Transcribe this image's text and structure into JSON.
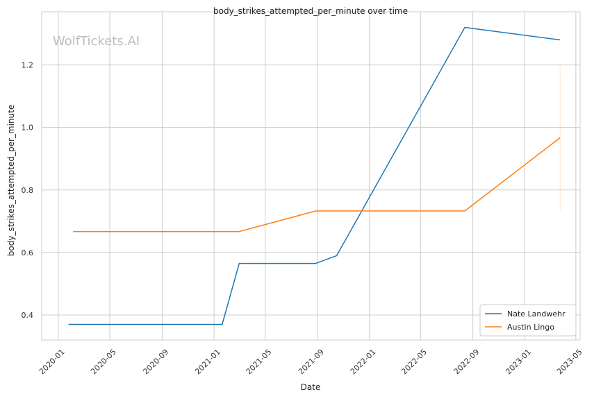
{
  "chart_data": {
    "type": "line",
    "title": "body_strikes_attempted_per_minute over time",
    "xlabel": "Date",
    "ylabel": "body_strikes_attempted_per_minute",
    "watermark": "WolfTickets.AI",
    "grid": true,
    "legend_position": "bottom-right",
    "xlim": [
      "2019-11-23",
      "2023-05-11"
    ],
    "ylim": [
      0.32,
      1.37
    ],
    "x_ticks": [
      "2020-01",
      "2020-05",
      "2020-09",
      "2021-01",
      "2021-05",
      "2021-09",
      "2022-01",
      "2022-05",
      "2022-09",
      "2023-01",
      "2023-05"
    ],
    "y_ticks": [
      0.4,
      0.6,
      0.8,
      1.0,
      1.2
    ],
    "y_tick_labels": [
      "0.4",
      "0.6",
      "0.8",
      "1.0",
      "1.2"
    ],
    "series": [
      {
        "name": "Nate Landwehr",
        "color": "#1f77b4",
        "points": [
          {
            "x": "2020-01-25",
            "y": 0.37
          },
          {
            "x": "2021-01-20",
            "y": 0.37
          },
          {
            "x": "2021-03-01",
            "y": 0.565
          },
          {
            "x": "2021-08-28",
            "y": 0.565
          },
          {
            "x": "2021-10-16",
            "y": 0.59
          },
          {
            "x": "2022-08-13",
            "y": 1.32
          },
          {
            "x": "2023-03-25",
            "y": 1.28
          }
        ]
      },
      {
        "name": "Austin Lingo",
        "color": "#ff7f0e",
        "points": [
          {
            "x": "2020-02-05",
            "y": 0.667
          },
          {
            "x": "2021-03-01",
            "y": 0.667
          },
          {
            "x": "2021-08-28",
            "y": 0.733
          },
          {
            "x": "2022-08-13",
            "y": 0.733
          },
          {
            "x": "2023-03-25",
            "y": 0.967
          }
        ]
      }
    ]
  }
}
